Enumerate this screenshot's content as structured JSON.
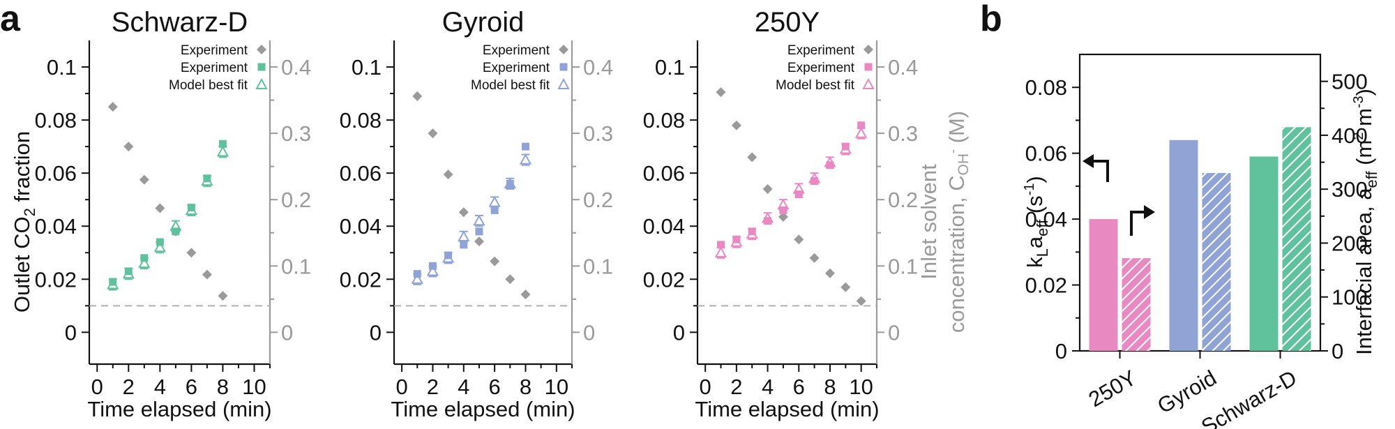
{
  "panel_labels": {
    "a": "a",
    "b": "b"
  },
  "chart_data": [
    {
      "type": "scatter",
      "title": "Schwarz-D",
      "xlabel": "Time elapsed (min)",
      "ylabel": "Outlet CO2 fraction",
      "y2label_line1": "Inlet solvent",
      "y2label_line2": "concentration, COH- (M)",
      "xlim": [
        -0.5,
        11
      ],
      "ylim": [
        -0.012,
        0.11
      ],
      "y2lim": [
        -0.048,
        0.44
      ],
      "xticks": [
        "0",
        "2",
        "4",
        "6",
        "8",
        "10"
      ],
      "yticks": [
        "0",
        "0.02",
        "0.04",
        "0.06",
        "0.08",
        "0.1"
      ],
      "y2ticks": [
        "0",
        "0.1",
        "0.2",
        "0.3",
        "0.4"
      ],
      "baseline_y2": 0.04,
      "colors": {
        "series": "#5fc29d",
        "gray": "#9a9a9a"
      },
      "legend": [
        "Experiment",
        "Experiment",
        "Model best fit"
      ],
      "concentration": {
        "name": "Experiment",
        "x": [
          1,
          2,
          3,
          4,
          5,
          6,
          7,
          8
        ],
        "y2": [
          0.34,
          0.28,
          0.23,
          0.187,
          0.152,
          0.12,
          0.087,
          0.055
        ]
      },
      "co2_experiment": {
        "name": "Experiment",
        "x": [
          1,
          2,
          3,
          4,
          5,
          6,
          7,
          8
        ],
        "y": [
          0.019,
          0.023,
          0.028,
          0.034,
          0.038,
          0.047,
          0.058,
          0.071
        ]
      },
      "co2_model": {
        "name": "Model best fit",
        "x": [
          1,
          2,
          3,
          4,
          5,
          6,
          7,
          8
        ],
        "y": [
          0.018,
          0.022,
          0.026,
          0.032,
          0.04,
          0.046,
          0.057,
          0.068
        ],
        "err": [
          0.002,
          0.002,
          0.002,
          0.002,
          0.002,
          0.002,
          0.002,
          0.002
        ]
      }
    },
    {
      "type": "scatter",
      "title": "Gyroid",
      "xlabel": "Time elapsed (min)",
      "ylabel": "",
      "xlim": [
        -0.5,
        11
      ],
      "ylim": [
        -0.012,
        0.11
      ],
      "y2lim": [
        -0.048,
        0.44
      ],
      "xticks": [
        "0",
        "2",
        "4",
        "6",
        "8",
        "10"
      ],
      "yticks": [
        "0",
        "0.02",
        "0.04",
        "0.06",
        "0.08",
        "0.1"
      ],
      "y2ticks": [
        "0",
        "0.1",
        "0.2",
        "0.3",
        "0.4"
      ],
      "baseline_y2": 0.04,
      "colors": {
        "series": "#8fa3d4",
        "gray": "#9a9a9a"
      },
      "legend": [
        "Experiment",
        "Experiment",
        "Model best fit"
      ],
      "concentration": {
        "name": "Experiment",
        "x": [
          1,
          2,
          3,
          4,
          5,
          6,
          7,
          8
        ],
        "y2": [
          0.356,
          0.3,
          0.238,
          0.181,
          0.137,
          0.107,
          0.08,
          0.057
        ]
      },
      "co2_experiment": {
        "name": "Experiment",
        "x": [
          1,
          2,
          3,
          4,
          5,
          6,
          7,
          8
        ],
        "y": [
          0.022,
          0.025,
          0.029,
          0.033,
          0.038,
          0.046,
          0.056,
          0.07
        ]
      },
      "co2_model": {
        "name": "Model best fit",
        "x": [
          1,
          2,
          3,
          4,
          5,
          6,
          7,
          8
        ],
        "y": [
          0.02,
          0.023,
          0.028,
          0.036,
          0.042,
          0.049,
          0.056,
          0.065
        ],
        "err": [
          0.002,
          0.002,
          0.002,
          0.002,
          0.002,
          0.002,
          0.002,
          0.002
        ]
      }
    },
    {
      "type": "scatter",
      "title": "250Y",
      "xlabel": "Time elapsed (min)",
      "ylabel": "",
      "xlim": [
        -0.5,
        11
      ],
      "ylim": [
        -0.012,
        0.11
      ],
      "y2lim": [
        -0.048,
        0.44
      ],
      "xticks": [
        "0",
        "2",
        "4",
        "6",
        "8",
        "10"
      ],
      "yticks": [
        "0",
        "0.02",
        "0.04",
        "0.06",
        "0.08",
        "0.1"
      ],
      "y2ticks": [
        "0",
        "0.1",
        "0.2",
        "0.3",
        "0.4"
      ],
      "baseline_y2": 0.04,
      "colors": {
        "series": "#e889c1",
        "gray": "#9a9a9a"
      },
      "legend": [
        "Experiment",
        "Experiment",
        "Model best fit"
      ],
      "concentration": {
        "name": "Experiment",
        "x": [
          1,
          2,
          3,
          4,
          5,
          6,
          7,
          8,
          9,
          10
        ],
        "y2": [
          0.362,
          0.312,
          0.264,
          0.216,
          0.174,
          0.14,
          0.112,
          0.089,
          0.068,
          0.047
        ]
      },
      "co2_experiment": {
        "name": "Experiment",
        "x": [
          1,
          2,
          3,
          4,
          5,
          6,
          7,
          8,
          9,
          10
        ],
        "y": [
          0.033,
          0.035,
          0.038,
          0.042,
          0.046,
          0.052,
          0.057,
          0.063,
          0.07,
          0.078
        ]
      },
      "co2_model": {
        "name": "Model best fit",
        "x": [
          1,
          2,
          3,
          4,
          5,
          6,
          7,
          8,
          9,
          10
        ],
        "y": [
          0.03,
          0.034,
          0.037,
          0.043,
          0.048,
          0.054,
          0.058,
          0.064,
          0.069,
          0.075
        ],
        "err": [
          0.002,
          0.002,
          0.002,
          0.002,
          0.002,
          0.002,
          0.002,
          0.002,
          0.002,
          0.002
        ]
      }
    },
    {
      "type": "bar",
      "categories": [
        "250Y",
        "Gyroid",
        "Schwarz-D"
      ],
      "ylabel": "kLaeff (s-1)",
      "y2label": "Interfacial area, aeff (m2 m-3)",
      "ylim": [
        0,
        0.09
      ],
      "y2lim": [
        0,
        550
      ],
      "yticks": [
        "0",
        "0.02",
        "0.04",
        "0.06",
        "0.08"
      ],
      "y2ticks": [
        "0",
        "100",
        "200",
        "300",
        "400",
        "500"
      ],
      "colors": [
        "#e889c1",
        "#8fa3d4",
        "#5fc29d"
      ],
      "series": [
        {
          "name": "kLaeff",
          "axis": "left",
          "values": [
            0.04,
            0.064,
            0.059
          ]
        },
        {
          "name": "aeff",
          "axis": "right",
          "pattern": "hatched",
          "values": [
            172,
            330,
            415
          ]
        }
      ]
    }
  ]
}
